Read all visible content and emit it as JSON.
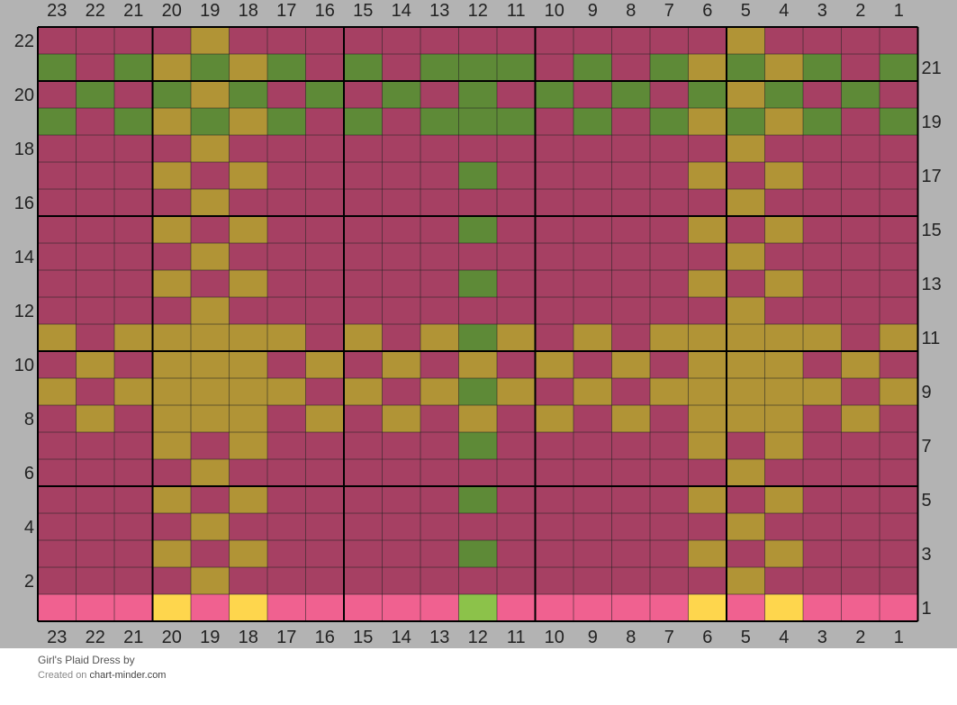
{
  "footer": {
    "title": "Girl's Plaid Dress",
    "by": "by",
    "created_on": "Created on",
    "site": "chart-minder.com"
  },
  "colors": {
    "M": "#a64063",
    "G": "#5e8a37",
    "Y": "#b19436",
    "P": "#f06190",
    "L": "#8cc24a",
    "S": "#fed64d",
    "background": "#b3b3b3",
    "grid_line": "#222222",
    "thick_line": "#000000"
  },
  "chart_data": {
    "type": "table",
    "columns": [
      23,
      22,
      21,
      20,
      19,
      18,
      17,
      16,
      15,
      14,
      13,
      12,
      11,
      10,
      9,
      8,
      7,
      6,
      5,
      4,
      3,
      2,
      1
    ],
    "rows": [
      22,
      21,
      20,
      19,
      18,
      17,
      16,
      15,
      14,
      13,
      12,
      11,
      10,
      9,
      8,
      7,
      6,
      5,
      4,
      3,
      2,
      1
    ],
    "left_row_labels": [
      "22",
      "20",
      "18",
      "16",
      "14",
      "12",
      "10",
      "8",
      "6",
      "4",
      "2"
    ],
    "right_row_labels": [
      "21",
      "19",
      "17",
      "15",
      "13",
      "11",
      "9",
      "7",
      "5",
      "3",
      "1"
    ],
    "legend": {
      "M": "raspberry",
      "G": "olive green",
      "Y": "mustard",
      "P": "pink",
      "L": "lime green",
      "S": "yellow"
    },
    "cells": [
      "MMMMYMMMMMMMMMMMMMYMMMM",
      "GMGYGYGMGMGGGMGMGYGYGMG",
      "MGMGYGMGMGMGMGMGMGYGMGM",
      "GMGYGYGMGMGGGMGMGYGYGMG",
      "MMMMYMMMMMMMMMMMMMYMMMM",
      "MMMYMYMMMMMGMMMMMYMYMMM",
      "MMMMYMMMMMMMMMMMMMYMMMM",
      "MMMYMYMMMMMGMMMMMYMYMMM",
      "MMMMYMMMMMMMMMMMMMYMMMM",
      "MMMYMYMMMMMGMMMMMYMYMMM",
      "MMMMYMMMMMMMMMMMMMYMMMM",
      "YMYYYYYMYMYGYMYMYYYYYMY",
      "MYMYYYMYMYMYMYMYMYYYMYM",
      "YMYYYYYMYMYGYMYMYYYYYMY",
      "MYMYYYMYMYMYMYMYMYYYMYM",
      "MMMYMYMMMMMGMMMMMYMYMMM",
      "MMMMYMMMMMMMMMMMMMYMMMM",
      "MMMYMYMMMMMGMMMMMYMYMMM",
      "MMMMYMMMMMMMMMMMMMYMMMM",
      "MMMYMYMMMMMGMMMMMYMYMMM",
      "MMMMYMMMMMMMMMMMMMYMMMM",
      "PPPSPSPPPPPLPPPPPSPSPPP"
    ]
  }
}
